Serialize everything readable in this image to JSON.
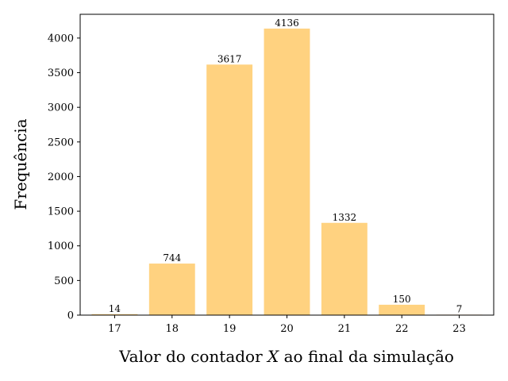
{
  "chart_data": {
    "type": "bar",
    "title": "",
    "xlabel_parts": [
      "Valor do contador ",
      "X",
      " ao final da simulação"
    ],
    "ylabel": "Frequência",
    "categories": [
      "17",
      "18",
      "19",
      "20",
      "21",
      "22",
      "23"
    ],
    "values": [
      14,
      744,
      3617,
      4136,
      1332,
      150,
      7
    ],
    "data_labels": [
      "14",
      "744",
      "3617",
      "4136",
      "1332",
      "150",
      "7"
    ],
    "yticks": [
      0,
      500,
      1000,
      1500,
      2000,
      2500,
      3000,
      3500,
      4000
    ],
    "ytick_labels": [
      "0",
      "500",
      "1000",
      "1500",
      "2000",
      "2500",
      "3000",
      "3500",
      "4000"
    ],
    "ylim": [
      0,
      4342.8
    ],
    "grid": false,
    "legend": "none",
    "colors": {
      "bar": "#ffd280",
      "axes": "#000000"
    }
  }
}
